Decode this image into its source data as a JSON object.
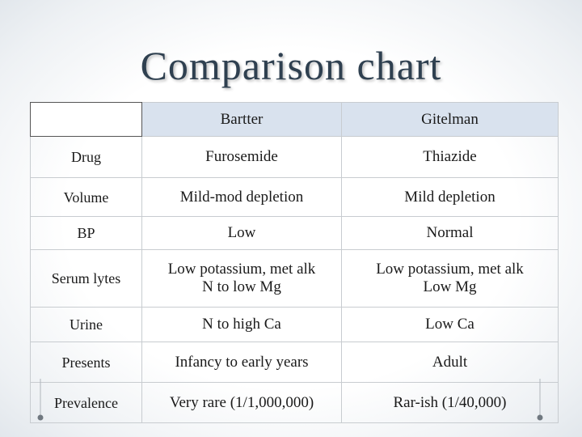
{
  "header": {
    "title": "Comparison chart"
  },
  "table": {
    "columns": [
      "Bartter",
      "Gitelman"
    ],
    "rows": [
      {
        "label": "Drug",
        "cells": [
          [
            "Furosemide"
          ],
          [
            "Thiazide"
          ]
        ]
      },
      {
        "label": "Volume",
        "cells": [
          [
            "Mild-mod depletion"
          ],
          [
            "Mild depletion"
          ]
        ]
      },
      {
        "label": "BP",
        "cells": [
          [
            "Low"
          ],
          [
            "Normal"
          ]
        ]
      },
      {
        "label": "Serum lytes",
        "cells": [
          [
            "Low potassium, met alk",
            "N to low Mg"
          ],
          [
            "Low potassium, met alk",
            "Low Mg"
          ]
        ]
      },
      {
        "label": "Urine",
        "cells": [
          [
            "N to high Ca"
          ],
          [
            "Low Ca"
          ]
        ]
      },
      {
        "label": "Presents",
        "cells": [
          [
            "Infancy to early years"
          ],
          [
            "Adult"
          ]
        ]
      },
      {
        "label": "Prevalence",
        "cells": [
          [
            "Very rare (1/1,000,000)"
          ],
          [
            "Rar-ish (1/40,000)"
          ]
        ]
      }
    ]
  }
}
